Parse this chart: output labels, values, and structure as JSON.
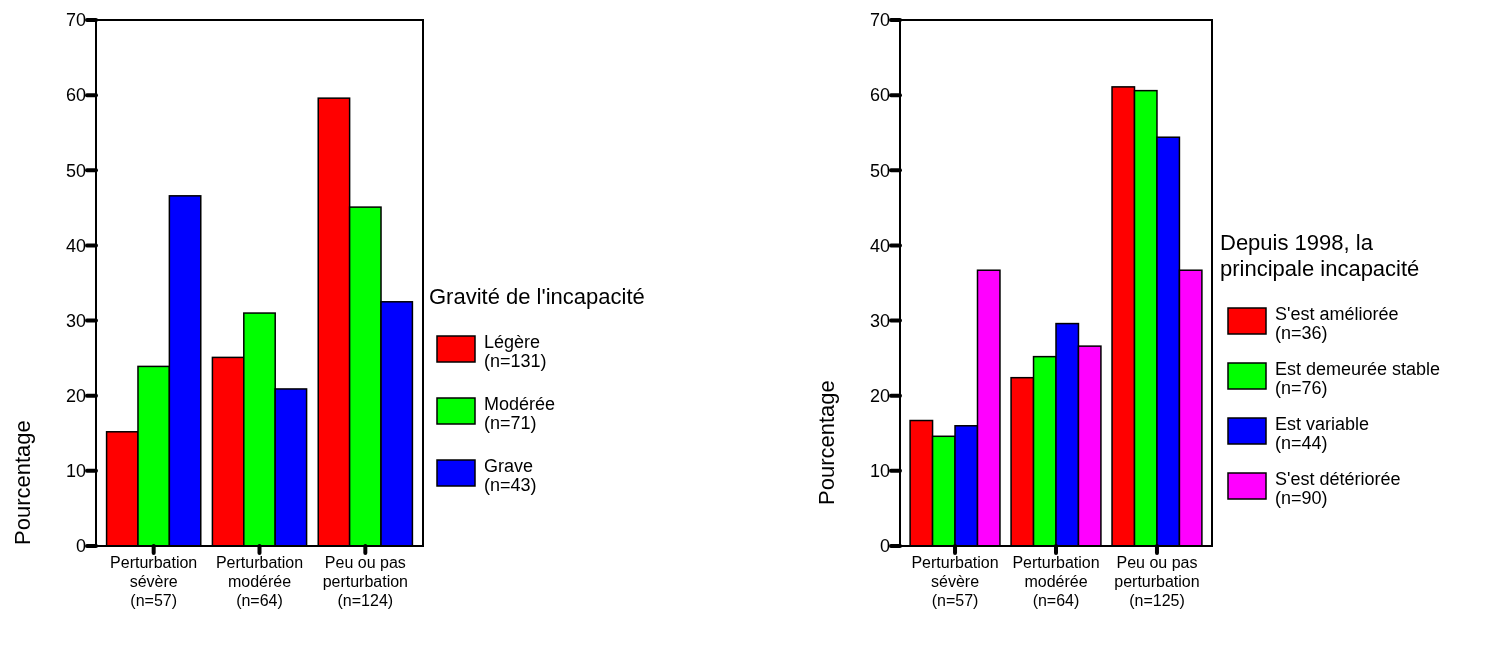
{
  "chart_data": [
    {
      "type": "bar",
      "categories": [
        "Perturbation sévère\n(n=57)",
        "Perturbation modérée\n(n=64)",
        "Peu ou pas perturbation\n(n=124)"
      ],
      "ylabel": "Pourcentage",
      "legend_title": "Gravité de l'incapacité",
      "legend": "right",
      "ylim": [
        0,
        70
      ],
      "yticks": [
        0,
        10,
        20,
        30,
        40,
        50,
        60,
        70
      ],
      "grid": false,
      "series": [
        {
          "name": "Légère\n(n=131)",
          "color": "#ff0000",
          "values": [
            15.2,
            25.1,
            59.6
          ]
        },
        {
          "name": "Modérée\n(n=71)",
          "color": "#00ff00",
          "values": [
            23.9,
            31.0,
            45.1
          ]
        },
        {
          "name": "Grave\n(n=43)",
          "color": "#0000ff",
          "values": [
            46.6,
            20.9,
            32.5
          ]
        }
      ]
    },
    {
      "type": "bar",
      "categories": [
        "Perturbation sévère\n(n=57)",
        "Perturbation modérée\n(n=64)",
        "Peu ou pas perturbation\n(n=125)"
      ],
      "ylabel": "Pourcentage",
      "legend_title": "Depuis 1998, la\nprincipale incapacité",
      "legend": "right",
      "ylim": [
        0,
        70
      ],
      "yticks": [
        0,
        10,
        20,
        30,
        40,
        50,
        60,
        70
      ],
      "grid": false,
      "series": [
        {
          "name": "S'est améliorée\n(n=36)",
          "color": "#ff0000",
          "values": [
            16.7,
            22.4,
            61.1
          ]
        },
        {
          "name": "Est demeurée stable\n(n=76)",
          "color": "#00ff00",
          "values": [
            14.6,
            25.2,
            60.6
          ]
        },
        {
          "name": "Est variable\n(n=44)",
          "color": "#0000ff",
          "values": [
            16.0,
            29.6,
            54.4
          ]
        },
        {
          "name": "S'est détériorée\n(n=90)",
          "color": "#ff00ff",
          "values": [
            36.7,
            26.6,
            36.7
          ]
        }
      ]
    }
  ]
}
